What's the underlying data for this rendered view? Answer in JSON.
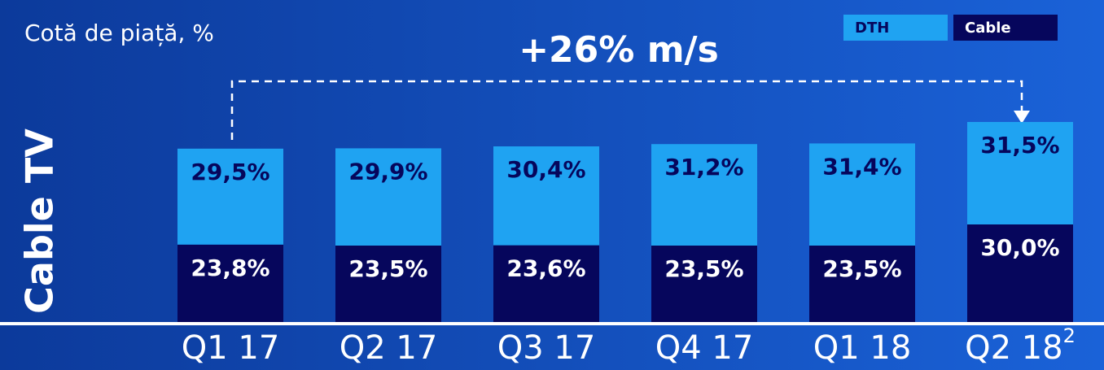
{
  "chart_data": {
    "type": "stacked_bar",
    "title": "Cotă de piață, %",
    "annotation": "+26% m/s",
    "ylabel": "Cable TV",
    "categories": [
      "Q1 17",
      "Q2 17",
      "Q3 17",
      "Q4 17",
      "Q1 18",
      "Q2 18"
    ],
    "category_notes": [
      null,
      null,
      null,
      null,
      null,
      "2"
    ],
    "ylim": [
      0,
      65
    ],
    "legend": "top-right",
    "series": [
      {
        "name": "Cable",
        "color": "#06065c",
        "label_color": "#ffffff",
        "values": [
          23.8,
          23.5,
          23.6,
          23.5,
          23.5,
          30.0
        ],
        "value_labels": [
          "23,8%",
          "23,5%",
          "23,6%",
          "23,5%",
          "23,5%",
          "30,0%"
        ]
      },
      {
        "name": "DTH",
        "color": "#1fa3f2",
        "label_color": "#06065c",
        "values": [
          29.5,
          29.9,
          30.4,
          31.2,
          31.4,
          31.5
        ],
        "value_labels": [
          "29,5%",
          "29,9%",
          "30,4%",
          "31,2%",
          "31,4%",
          "31,5%"
        ]
      }
    ]
  }
}
